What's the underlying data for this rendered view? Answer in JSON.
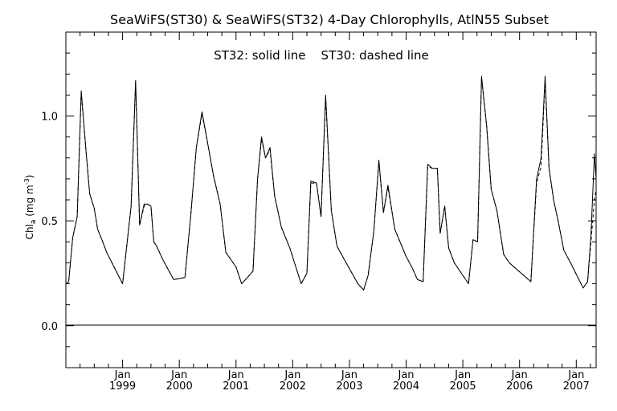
{
  "chart_data": {
    "type": "line",
    "title": "SeaWiFS(ST30) & SeaWiFS(ST32) 4-Day Chlorophylls, AtlN55 Subset",
    "annotation": "ST32: solid line    ST30: dashed line",
    "ylabel": {
      "main": "Chl",
      "sub": "a",
      "unit_open": " (mg m",
      "unit_sup": "-3",
      "unit_close": ")"
    },
    "xlim": [
      1998.0,
      2007.35
    ],
    "ylim": [
      -0.2,
      1.4
    ],
    "y_ticks": [
      {
        "value": 0.0,
        "label": "0.0"
      },
      {
        "value": 0.5,
        "label": "0.5"
      },
      {
        "value": 1.0,
        "label": "1.0"
      }
    ],
    "y_minor_step": 0.1,
    "x_ticks": [
      {
        "value": 1999.0,
        "month": "Jan",
        "year": "1999"
      },
      {
        "value": 2000.0,
        "month": "Jan",
        "year": "2000"
      },
      {
        "value": 2001.0,
        "month": "Jan",
        "year": "2001"
      },
      {
        "value": 2002.0,
        "month": "Jan",
        "year": "2002"
      },
      {
        "value": 2003.0,
        "month": "Jan",
        "year": "2003"
      },
      {
        "value": 2004.0,
        "month": "Jan",
        "year": "2004"
      },
      {
        "value": 2005.0,
        "month": "Jan",
        "year": "2005"
      },
      {
        "value": 2006.0,
        "month": "Jan",
        "year": "2006"
      },
      {
        "value": 2007.0,
        "month": "Jan",
        "year": "2007"
      }
    ],
    "reference_line": 0.0,
    "legend": "none",
    "grid": false,
    "series": [
      {
        "name": "ST32",
        "style": "solid",
        "color": "#000000",
        "x": [
          1998.0,
          1998.05,
          1998.12,
          1998.2,
          1998.27,
          1998.35,
          1998.42,
          1998.5,
          1998.56,
          1998.62,
          1998.72,
          1998.85,
          1999.0,
          1999.15,
          1999.23,
          1999.3,
          1999.38,
          1999.44,
          1999.5,
          1999.55,
          1999.6,
          1999.7,
          1999.78,
          1999.9,
          2000.1,
          2000.2,
          2000.3,
          2000.4,
          2000.48,
          2000.6,
          2000.72,
          2000.82,
          2001.0,
          2001.1,
          2001.2,
          2001.3,
          2001.38,
          2001.45,
          2001.52,
          2001.6,
          2001.68,
          2001.8,
          2001.95,
          2002.15,
          2002.25,
          2002.32,
          2002.42,
          2002.5,
          2002.58,
          2002.68,
          2002.78,
          2002.9,
          2003.15,
          2003.25,
          2003.33,
          2003.43,
          2003.52,
          2003.6,
          2003.68,
          2003.8,
          2004.0,
          2004.1,
          2004.2,
          2004.3,
          2004.38,
          2004.46,
          2004.55,
          2004.6,
          2004.68,
          2004.75,
          2004.85,
          2005.1,
          2005.18,
          2005.26,
          2005.33,
          2005.42,
          2005.5,
          2005.6,
          2005.72,
          2005.82,
          2006.2,
          2006.3,
          2006.38,
          2006.45,
          2006.52,
          2006.6,
          2006.68,
          2006.78,
          2006.9,
          2007.12,
          2007.2,
          2007.26,
          2007.32,
          2007.35
        ],
        "y": [
          0.2,
          0.21,
          0.42,
          0.52,
          1.12,
          0.85,
          0.63,
          0.56,
          0.46,
          0.42,
          0.35,
          0.28,
          0.2,
          0.57,
          1.17,
          0.48,
          0.58,
          0.58,
          0.57,
          0.4,
          0.38,
          0.32,
          0.28,
          0.22,
          0.23,
          0.52,
          0.85,
          1.02,
          0.9,
          0.72,
          0.58,
          0.35,
          0.28,
          0.2,
          0.23,
          0.26,
          0.7,
          0.9,
          0.8,
          0.85,
          0.62,
          0.47,
          0.37,
          0.2,
          0.25,
          0.69,
          0.68,
          0.52,
          1.1,
          0.55,
          0.38,
          0.32,
          0.2,
          0.17,
          0.24,
          0.45,
          0.79,
          0.54,
          0.67,
          0.46,
          0.33,
          0.28,
          0.22,
          0.21,
          0.77,
          0.75,
          0.75,
          0.44,
          0.57,
          0.37,
          0.3,
          0.2,
          0.41,
          0.4,
          1.19,
          0.95,
          0.65,
          0.55,
          0.34,
          0.3,
          0.21,
          0.7,
          0.8,
          1.19,
          0.75,
          0.6,
          0.5,
          0.36,
          0.3,
          0.18,
          0.21,
          0.43,
          0.82,
          0.7
        ]
      },
      {
        "name": "ST30",
        "style": "dashed",
        "color": "#000000",
        "x": [
          1998.0,
          1998.05,
          1998.12,
          1998.2,
          1998.27,
          1998.35,
          1998.42,
          1998.5,
          1998.56,
          1998.62,
          1998.72,
          1998.85,
          1999.0,
          1999.15,
          1999.23,
          1999.3,
          1999.38,
          1999.44,
          1999.5,
          1999.55,
          1999.6,
          1999.7,
          1999.78,
          1999.9,
          2000.1,
          2000.2,
          2000.3,
          2000.4,
          2000.48,
          2000.6,
          2000.72,
          2000.82,
          2001.0,
          2001.1,
          2001.2,
          2001.3,
          2001.38,
          2001.45,
          2001.52,
          2001.6,
          2001.68,
          2001.8,
          2001.95,
          2002.15,
          2002.25,
          2002.32,
          2002.42,
          2002.5,
          2002.58,
          2002.68,
          2002.78,
          2002.9,
          2003.15,
          2003.25,
          2003.33,
          2003.43,
          2003.52,
          2003.6,
          2003.68,
          2003.8,
          2004.0,
          2004.1,
          2004.2,
          2004.3,
          2004.38,
          2004.46,
          2004.55,
          2004.6,
          2004.68,
          2004.75,
          2004.85,
          2005.1,
          2005.18,
          2005.26,
          2005.33,
          2005.42,
          2005.5,
          2005.6,
          2005.72,
          2005.82,
          2006.2,
          2006.3,
          2006.38,
          2006.45,
          2006.52,
          2006.6,
          2006.68,
          2006.78,
          2006.9,
          2007.12,
          2007.2,
          2007.26,
          2007.32,
          2007.35
        ],
        "y": [
          0.2,
          0.21,
          0.42,
          0.52,
          1.11,
          0.85,
          0.63,
          0.56,
          0.46,
          0.42,
          0.35,
          0.28,
          0.2,
          0.57,
          1.16,
          0.48,
          0.57,
          0.58,
          0.57,
          0.4,
          0.38,
          0.32,
          0.28,
          0.22,
          0.23,
          0.52,
          0.85,
          1.01,
          0.9,
          0.72,
          0.58,
          0.35,
          0.28,
          0.2,
          0.23,
          0.26,
          0.7,
          0.89,
          0.8,
          0.84,
          0.62,
          0.47,
          0.37,
          0.2,
          0.25,
          0.68,
          0.68,
          0.52,
          1.09,
          0.55,
          0.38,
          0.32,
          0.2,
          0.17,
          0.24,
          0.45,
          0.78,
          0.54,
          0.66,
          0.46,
          0.33,
          0.28,
          0.22,
          0.21,
          0.76,
          0.75,
          0.75,
          0.44,
          0.57,
          0.37,
          0.3,
          0.2,
          0.41,
          0.4,
          1.18,
          0.95,
          0.65,
          0.55,
          0.34,
          0.3,
          0.21,
          0.68,
          0.76,
          1.17,
          0.75,
          0.6,
          0.5,
          0.36,
          0.3,
          0.18,
          0.21,
          0.4,
          0.6,
          0.65
        ]
      }
    ]
  }
}
